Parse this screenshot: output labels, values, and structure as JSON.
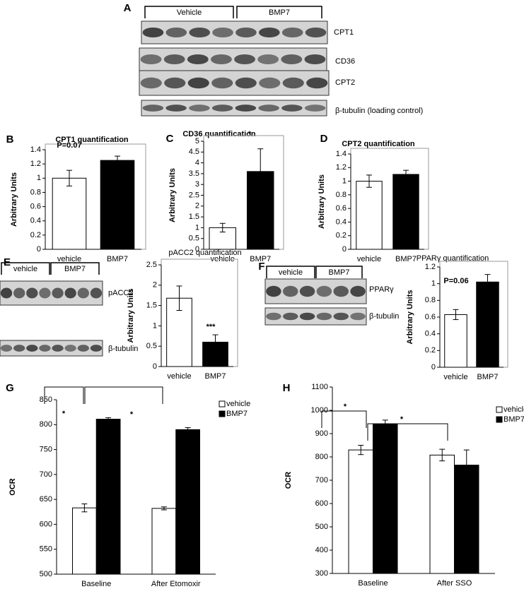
{
  "blots": [
    {
      "panel": "A",
      "groups": [
        "Vehicle",
        "BMP7"
      ],
      "rows": [
        "CPT1",
        "CD36",
        "CPT2",
        "β-tubulin (loading control)"
      ]
    },
    {
      "panel": "E",
      "groups": [
        "vehicle",
        "BMP7"
      ],
      "rows": [
        "pACC2",
        "β-tubulin"
      ]
    },
    {
      "panel": "F",
      "groups": [
        "vehicle",
        "BMP7"
      ],
      "rows": [
        "PPARγ",
        "β-tubulin"
      ]
    }
  ],
  "chart_data": [
    {
      "type": "bar",
      "panel": "B",
      "title": "CPT1 quantification",
      "ylabel": "Arbitrary Units",
      "categories": [
        "vehicle",
        "BMP7"
      ],
      "colors": [
        "#ffffff",
        "#000000"
      ],
      "values": [
        1,
        1.25
      ],
      "errors": [
        0.11,
        0.06
      ],
      "ylim": [
        0,
        1.4
      ],
      "yticks": [
        0,
        0.2,
        0.4,
        0.6,
        0.8,
        1,
        1.2,
        1.4
      ],
      "annotations": [
        "P=0.07"
      ]
    },
    {
      "type": "bar",
      "panel": "C",
      "title": "CD36 quantification",
      "ylabel": "Arbitrary Units",
      "categories": [
        "vehicle",
        "BMP7"
      ],
      "colors": [
        "#ffffff",
        "#000000"
      ],
      "values": [
        1,
        3.6
      ],
      "errors": [
        0.2,
        1.05
      ],
      "ylim": [
        0,
        5
      ],
      "yticks": [
        0,
        0.5,
        1,
        1.5,
        2,
        2.5,
        3,
        3.5,
        4,
        4.5,
        5
      ],
      "annotations": [
        "*"
      ]
    },
    {
      "type": "bar",
      "panel": "D",
      "title": "CPT2 quantification",
      "ylabel": "Arbitrary Units",
      "categories": [
        "vehicle",
        "BMP7"
      ],
      "colors": [
        "#ffffff",
        "#000000"
      ],
      "values": [
        1,
        1.1
      ],
      "errors": [
        0.09,
        0.06
      ],
      "ylim": [
        0,
        1.4
      ],
      "yticks": [
        0,
        0.2,
        0.4,
        0.6,
        0.8,
        1,
        1.2,
        1.4
      ],
      "annotations": []
    },
    {
      "type": "bar",
      "title": "pACC2 quantification",
      "ylabel": "Arbitrary Units",
      "categories": [
        "vehicle",
        "BMP7"
      ],
      "colors": [
        "#ffffff",
        "#000000"
      ],
      "values": [
        1.68,
        0.6
      ],
      "errors": [
        0.3,
        0.18
      ],
      "ylim": [
        0,
        2.5
      ],
      "yticks": [
        0,
        0.5,
        1,
        1.5,
        2,
        2.5
      ],
      "annotations": [
        "***"
      ]
    },
    {
      "type": "bar",
      "title": "PPARγ quantification",
      "ylabel": "Arbitrary Units",
      "categories": [
        "vehicle",
        "BMP7"
      ],
      "colors": [
        "#ffffff",
        "#000000"
      ],
      "values": [
        0.63,
        1.02
      ],
      "errors": [
        0.06,
        0.09
      ],
      "ylim": [
        0,
        1.2
      ],
      "yticks": [
        0,
        0.2,
        0.4,
        0.6,
        0.8,
        1,
        1.2
      ],
      "annotations": [
        "P=0.06"
      ]
    },
    {
      "type": "grouped_bar",
      "panel": "G",
      "ylabel": "OCR",
      "categories": [
        "Baseline",
        "After Etomoxir"
      ],
      "series": [
        {
          "name": "vehicle",
          "color": "#ffffff",
          "values": [
            633,
            632
          ],
          "errors": [
            8,
            3
          ]
        },
        {
          "name": "BMP7",
          "color": "#000000",
          "values": [
            811,
            790
          ],
          "errors": [
            3,
            4
          ]
        }
      ],
      "ylim": [
        500,
        850
      ],
      "yticks": [
        500,
        550,
        600,
        650,
        700,
        750,
        800,
        850
      ],
      "annotations": [
        "*",
        "*"
      ]
    },
    {
      "type": "grouped_bar",
      "panel": "H",
      "ylabel": "OCR",
      "categories": [
        "Baseline",
        "After SSO"
      ],
      "series": [
        {
          "name": "vehicle",
          "color": "#ffffff",
          "values": [
            830,
            808
          ],
          "errors": [
            20,
            25
          ]
        },
        {
          "name": "BMP7",
          "color": "#000000",
          "values": [
            940,
            765
          ],
          "errors": [
            18,
            65
          ]
        }
      ],
      "ylim": [
        300,
        1100
      ],
      "yticks": [
        300,
        400,
        500,
        600,
        700,
        800,
        900,
        1000,
        1100
      ],
      "annotations": [
        "*",
        "*"
      ]
    }
  ]
}
